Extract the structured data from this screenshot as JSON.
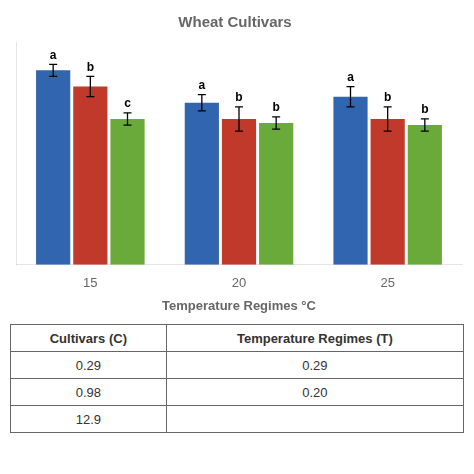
{
  "chart_data": {
    "type": "bar",
    "title": "Wheat Cultivars",
    "xlabel": "Temperature Regimes °C",
    "categories": [
      "15",
      "20",
      "25"
    ],
    "series": [
      {
        "color": "#3165b0",
        "values": [
          96,
          80,
          83
        ],
        "errors": [
          3,
          4,
          5
        ],
        "significance": [
          "a",
          "a",
          "a"
        ]
      },
      {
        "color": "#c0392b",
        "values": [
          88,
          72,
          72
        ],
        "errors": [
          5,
          6,
          6
        ],
        "significance": [
          "b",
          "b",
          "b"
        ]
      },
      {
        "color": "#6aaa3a",
        "values": [
          72,
          70,
          69
        ],
        "errors": [
          3,
          3,
          3
        ],
        "significance": [
          "c",
          "b",
          "b"
        ]
      }
    ],
    "ylim": [
      0,
      110
    ],
    "grid": false,
    "tick_labels": "x",
    "table": {
      "columns": [
        "Cultivars (C)",
        "Temperature Regimes (T)"
      ],
      "rows": [
        [
          "0.29",
          "0.29"
        ],
        [
          "0.98",
          "0.20"
        ],
        [
          "12.9",
          ""
        ]
      ]
    }
  }
}
